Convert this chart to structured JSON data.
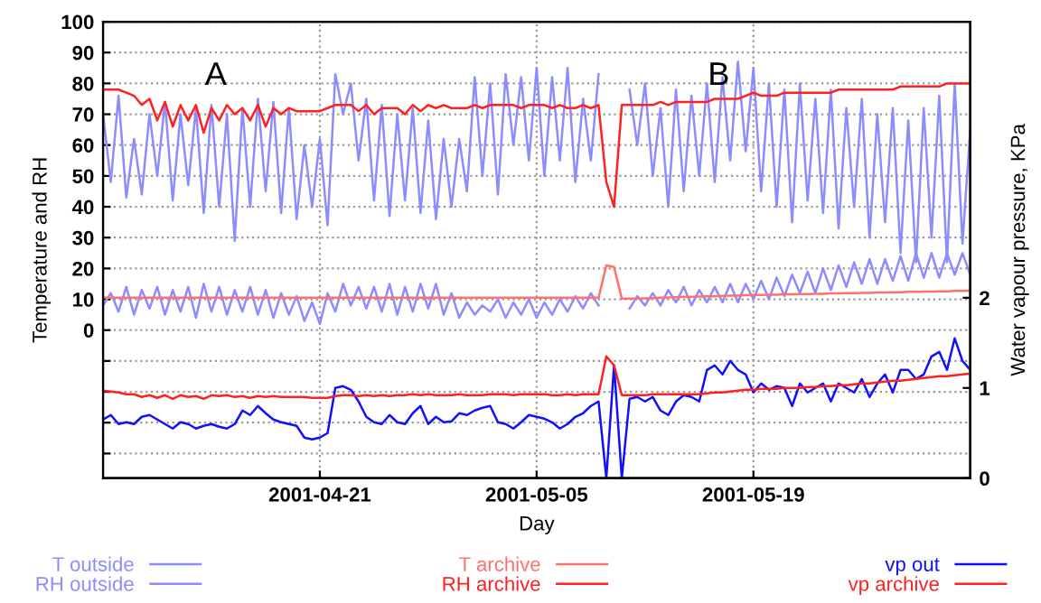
{
  "chart_data": {
    "type": "line",
    "xlabel": "Day",
    "ylabel": "Temperature and RH",
    "y2label": "Water vapour pressure, KPa",
    "x": [
      "2001-04-07T00:00",
      "2001-04-07T12:00",
      "2001-04-08T00:00",
      "2001-04-08T12:00",
      "2001-04-09T00:00",
      "2001-04-09T12:00",
      "2001-04-10T00:00",
      "2001-04-10T12:00",
      "2001-04-11T00:00",
      "2001-04-11T12:00",
      "2001-04-12T00:00",
      "2001-04-12T12:00",
      "2001-04-13T00:00",
      "2001-04-13T12:00",
      "2001-04-14T00:00",
      "2001-04-14T12:00",
      "2001-04-15T00:00",
      "2001-04-15T12:00",
      "2001-04-16T00:00",
      "2001-04-16T12:00",
      "2001-04-17T00:00",
      "2001-04-17T12:00",
      "2001-04-18T00:00",
      "2001-04-18T12:00",
      "2001-04-19T00:00",
      "2001-04-19T12:00",
      "2001-04-20T00:00",
      "2001-04-20T12:00",
      "2001-04-21T00:00",
      "2001-04-21T12:00",
      "2001-04-22T00:00",
      "2001-04-22T12:00",
      "2001-04-23T00:00",
      "2001-04-23T12:00",
      "2001-04-24T00:00",
      "2001-04-24T12:00",
      "2001-04-25T00:00",
      "2001-04-25T12:00",
      "2001-04-26T00:00",
      "2001-04-26T12:00",
      "2001-04-27T00:00",
      "2001-04-27T12:00",
      "2001-04-28T00:00",
      "2001-04-28T12:00",
      "2001-04-29T00:00",
      "2001-04-29T12:00",
      "2001-04-30T00:00",
      "2001-04-30T12:00",
      "2001-05-01T00:00",
      "2001-05-01T12:00",
      "2001-05-02T00:00",
      "2001-05-02T12:00",
      "2001-05-03T00:00",
      "2001-05-03T12:00",
      "2001-05-04T00:00",
      "2001-05-04T12:00",
      "2001-05-05T00:00",
      "2001-05-05T12:00",
      "2001-05-06T00:00",
      "2001-05-06T12:00",
      "2001-05-07T00:00",
      "2001-05-07T12:00",
      "2001-05-08T00:00",
      "2001-05-08T12:00",
      "2001-05-09T00:00",
      "2001-05-09T12:00",
      "2001-05-10T00:00",
      "2001-05-10T12:00",
      "2001-05-11T00:00",
      "2001-05-11T12:00",
      "2001-05-12T00:00",
      "2001-05-12T12:00",
      "2001-05-13T00:00",
      "2001-05-13T12:00",
      "2001-05-14T00:00",
      "2001-05-14T12:00",
      "2001-05-15T00:00",
      "2001-05-15T12:00",
      "2001-05-16T00:00",
      "2001-05-16T12:00",
      "2001-05-17T00:00",
      "2001-05-17T12:00",
      "2001-05-18T00:00",
      "2001-05-18T12:00",
      "2001-05-19T00:00",
      "2001-05-19T12:00",
      "2001-05-20T00:00",
      "2001-05-20T12:00",
      "2001-05-21T00:00",
      "2001-05-21T12:00",
      "2001-05-22T00:00",
      "2001-05-22T12:00",
      "2001-05-23T00:00",
      "2001-05-23T12:00",
      "2001-05-24T00:00",
      "2001-05-24T12:00",
      "2001-05-25T00:00",
      "2001-05-25T12:00",
      "2001-05-26T00:00",
      "2001-05-26T12:00",
      "2001-05-27T00:00",
      "2001-05-27T12:00",
      "2001-05-28T00:00",
      "2001-05-28T12:00",
      "2001-05-29T00:00",
      "2001-05-29T12:00",
      "2001-05-30T00:00",
      "2001-05-30T12:00",
      "2001-05-31T00:00",
      "2001-05-31T12:00",
      "2001-06-01T00:00",
      "2001-06-01T12:00",
      "2001-06-02T00:00"
    ],
    "series": [
      {
        "name": "T outside",
        "color": "#8c8cff",
        "values": [
          8,
          12,
          6,
          14,
          5,
          13,
          7,
          14,
          5,
          13,
          6,
          14,
          4,
          15,
          6,
          14,
          5,
          13,
          6,
          14,
          5,
          13,
          4,
          12,
          5,
          11,
          3,
          9,
          2,
          12,
          6,
          15,
          8,
          14,
          7,
          14,
          6,
          15,
          5,
          14,
          6,
          15,
          7,
          15,
          5,
          12,
          4,
          9,
          5,
          8,
          6,
          10,
          4,
          9,
          5,
          10,
          4,
          9,
          5,
          10,
          6,
          11,
          7,
          12,
          8,
          null,
          null,
          null,
          7,
          11,
          8,
          12,
          8,
          13,
          9,
          14,
          8,
          13,
          9,
          14,
          9,
          15,
          9,
          15,
          10,
          16,
          10,
          17,
          11,
          18,
          12,
          19,
          12,
          20,
          13,
          21,
          14,
          22,
          15,
          23,
          15,
          23,
          16,
          24,
          16,
          25,
          17,
          25,
          17,
          25,
          18,
          25,
          18
        ]
      },
      {
        "name": "RH outside",
        "color": "#8c8cff",
        "values": [
          70,
          48,
          76,
          43,
          62,
          44,
          70,
          50,
          74,
          42,
          70,
          47,
          72,
          38,
          73,
          40,
          70,
          29,
          72,
          40,
          75,
          45,
          74,
          38,
          72,
          36,
          60,
          40,
          62,
          34,
          83,
          70,
          80,
          55,
          75,
          42,
          73,
          37,
          70,
          42,
          72,
          38,
          68,
          36,
          62,
          40,
          62,
          45,
          82,
          50,
          80,
          44,
          83,
          60,
          82,
          55,
          85,
          50,
          82,
          55,
          85,
          48,
          75,
          55,
          83,
          null,
          null,
          null,
          78,
          60,
          80,
          50,
          72,
          40,
          78,
          45,
          76,
          50,
          80,
          48,
          82,
          55,
          87,
          58,
          85,
          45,
          80,
          40,
          78,
          35,
          80,
          42,
          75,
          38,
          78,
          33,
          72,
          40,
          75,
          30,
          70,
          35,
          72,
          25,
          68,
          22,
          72,
          30,
          76,
          22,
          80,
          28,
          65
        ]
      },
      {
        "name": "T archive",
        "color": "#ff7070",
        "values": [
          10.5,
          10.5,
          10.5,
          10.5,
          10.5,
          10.5,
          10.5,
          10.5,
          10.5,
          10.5,
          10.5,
          10.5,
          10.5,
          10.5,
          10.5,
          10.5,
          10.5,
          10.5,
          10.5,
          10.5,
          10.5,
          10.5,
          10.5,
          10.5,
          10.5,
          10.5,
          10.5,
          10.5,
          10.5,
          10.5,
          10.5,
          10.5,
          10.5,
          10.5,
          10.5,
          10.5,
          10.5,
          10.5,
          10.5,
          10.5,
          10.5,
          10.5,
          10.5,
          10.5,
          10.5,
          10.5,
          10.5,
          10.5,
          10.5,
          10.5,
          10.5,
          10.5,
          10.5,
          10.5,
          10.5,
          10.5,
          10.5,
          10.5,
          10.5,
          10.5,
          10.5,
          10.5,
          10.5,
          10.5,
          10.5,
          21,
          20.5,
          10.2,
          10.2,
          10.2,
          10.3,
          10.4,
          10.5,
          10.6,
          10.7,
          10.8,
          10.8,
          10.9,
          11,
          11,
          11.1,
          11.2,
          11.2,
          11.3,
          11.4,
          11.4,
          11.5,
          11.5,
          11.6,
          11.6,
          11.7,
          11.7,
          11.8,
          11.8,
          11.9,
          11.9,
          12,
          12,
          12.1,
          12.1,
          12.2,
          12.2,
          12.3,
          12.3,
          12.4,
          12.4,
          12.5,
          12.5,
          12.6,
          12.6,
          12.7,
          12.7,
          12.8
        ]
      },
      {
        "name": "RH archive",
        "color": "#ff2020",
        "values": [
          78,
          78,
          78,
          77,
          76,
          73,
          75,
          68,
          74,
          66,
          73,
          68,
          73,
          64,
          72,
          68,
          73,
          70,
          72,
          68,
          73,
          66,
          72,
          70,
          72,
          71,
          71,
          71,
          71,
          72,
          73,
          73,
          73,
          71,
          73,
          70,
          72,
          72,
          72,
          70,
          73,
          71,
          73,
          72,
          73,
          72,
          72,
          72,
          73,
          72,
          73,
          73,
          73,
          73,
          72,
          73,
          73,
          73,
          72,
          73,
          72,
          72,
          73,
          72,
          73,
          48,
          40,
          73,
          73,
          73,
          73,
          73,
          74,
          73,
          74,
          74,
          74,
          74,
          74,
          75,
          75,
          75,
          75,
          76,
          77,
          76,
          76,
          76,
          77,
          77,
          77,
          77,
          77,
          77,
          77,
          78,
          78,
          78,
          78,
          78,
          78,
          78,
          78,
          79,
          79,
          79,
          79,
          79,
          79,
          80,
          80,
          80,
          80
        ]
      },
      {
        "name": "vp out",
        "color": "#1010ff",
        "axis": "y2",
        "values": [
          0.65,
          0.7,
          0.6,
          0.62,
          0.6,
          0.68,
          0.7,
          0.65,
          0.6,
          0.55,
          0.62,
          0.6,
          0.55,
          0.58,
          0.6,
          0.57,
          0.55,
          0.6,
          0.75,
          0.7,
          0.8,
          0.72,
          0.65,
          0.62,
          0.6,
          0.58,
          0.45,
          0.43,
          0.45,
          0.5,
          1.0,
          1.02,
          0.98,
          0.85,
          0.68,
          0.62,
          0.6,
          0.7,
          0.62,
          0.6,
          0.72,
          0.8,
          0.6,
          0.68,
          0.62,
          0.63,
          0.72,
          0.7,
          0.75,
          0.78,
          0.8,
          0.62,
          0.6,
          0.55,
          0.62,
          0.7,
          0.68,
          0.66,
          0.62,
          0.55,
          0.6,
          0.68,
          0.72,
          0.8,
          0.85,
          0,
          1.25,
          0,
          0.88,
          0.9,
          0.85,
          0.9,
          0.75,
          0.7,
          0.85,
          0.92,
          0.9,
          0.85,
          1.2,
          1.25,
          1.15,
          1.3,
          1.2,
          1.15,
          0.95,
          1.05,
          0.98,
          1.02,
          1.0,
          0.8,
          1.05,
          0.95,
          1.0,
          1.05,
          0.85,
          1.05,
          1.0,
          0.95,
          1.1,
          0.9,
          1.05,
          1.15,
          0.95,
          1.2,
          1.2,
          1.1,
          1.15,
          1.35,
          1.4,
          1.2,
          1.55,
          1.3,
          1.2
        ]
      },
      {
        "name": "vp archive",
        "color": "#ff2020",
        "axis": "y2",
        "values": [
          0.97,
          0.96,
          0.95,
          0.93,
          0.93,
          0.9,
          0.92,
          0.89,
          0.92,
          0.88,
          0.92,
          0.9,
          0.91,
          0.88,
          0.92,
          0.91,
          0.92,
          0.9,
          0.91,
          0.89,
          0.91,
          0.9,
          0.91,
          0.9,
          0.9,
          0.9,
          0.9,
          0.89,
          0.89,
          0.89,
          0.91,
          0.92,
          0.92,
          0.91,
          0.92,
          0.91,
          0.92,
          0.91,
          0.92,
          0.92,
          0.93,
          0.92,
          0.93,
          0.92,
          0.92,
          0.92,
          0.93,
          0.92,
          0.92,
          0.92,
          0.93,
          0.93,
          0.93,
          0.92,
          0.93,
          0.93,
          0.93,
          0.93,
          0.92,
          0.92,
          0.93,
          0.92,
          0.93,
          0.93,
          0.93,
          1.35,
          1.25,
          0.92,
          0.92,
          0.92,
          0.92,
          0.93,
          0.93,
          0.93,
          0.93,
          0.93,
          0.93,
          0.93,
          0.94,
          0.95,
          0.95,
          0.96,
          0.97,
          0.98,
          0.98,
          0.99,
          0.99,
          0.99,
          1.0,
          1.0,
          1.0,
          1.01,
          1.01,
          1.02,
          1.02,
          1.03,
          1.03,
          1.04,
          1.05,
          1.05,
          1.06,
          1.07,
          1.08,
          1.08,
          1.09,
          1.1,
          1.11,
          1.12,
          1.13,
          1.13,
          1.14,
          1.15,
          1.16
        ]
      }
    ],
    "xlim": [
      "2001-04-07",
      "2001-06-02"
    ],
    "xticks": [
      "2001-04-21",
      "2001-05-05",
      "2001-05-19"
    ],
    "ylim": [
      -48,
      100
    ],
    "yticks": [
      {
        "value": -40,
        "label": null
      },
      {
        "value": -30,
        "label": null
      },
      {
        "value": -20,
        "label": null
      },
      {
        "value": -10,
        "label": null
      },
      0,
      10,
      20,
      30,
      40,
      50,
      60,
      70,
      80,
      90,
      100
    ],
    "y2lim": [
      0,
      5.06
    ],
    "y2ticks": [
      0,
      1,
      2
    ],
    "annotations": [
      "A",
      "B"
    ],
    "grid": true,
    "legend": "bottom",
    "line_style": "solid",
    "marker": "none"
  }
}
